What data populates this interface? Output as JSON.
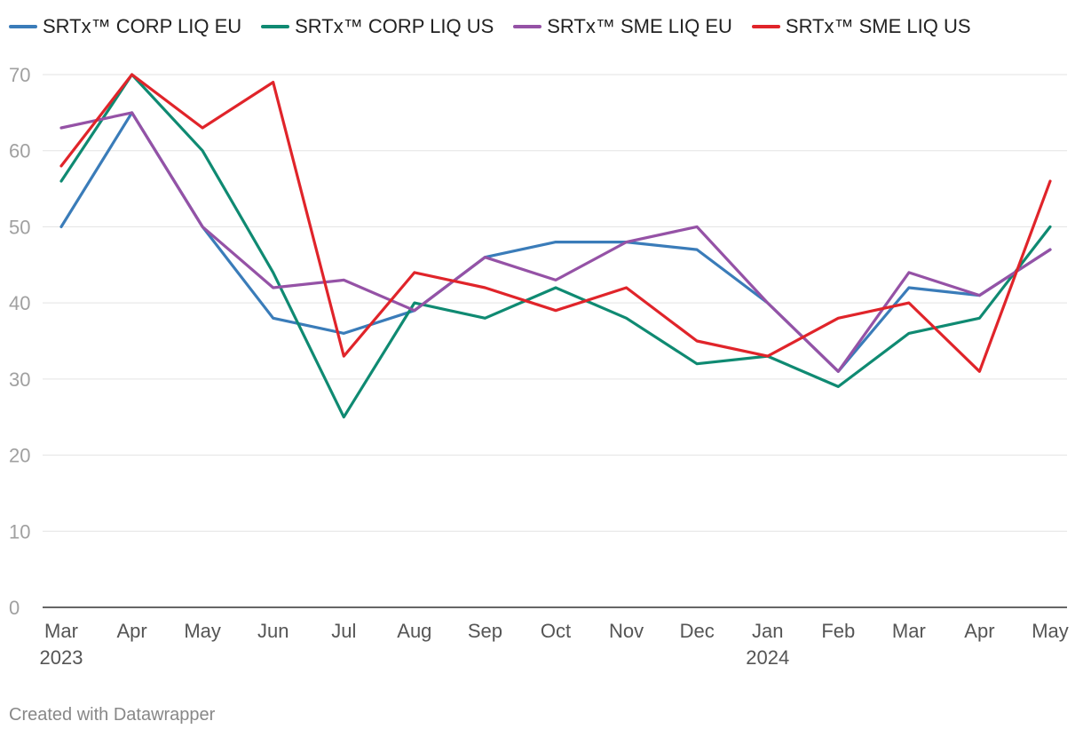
{
  "footer": {
    "credit": "Created with Datawrapper"
  },
  "chart_data": {
    "type": "line",
    "title": "",
    "xlabel": "",
    "ylabel": "",
    "ylim": [
      0,
      70
    ],
    "y_ticks": [
      0,
      10,
      20,
      30,
      40,
      50,
      60,
      70
    ],
    "grid": true,
    "legend_position": "top-left",
    "categories": [
      "Mar",
      "Apr",
      "May",
      "Jun",
      "Jul",
      "Aug",
      "Sep",
      "Oct",
      "Nov",
      "Dec",
      "Jan",
      "Feb",
      "Mar",
      "Apr",
      "May"
    ],
    "year_labels": [
      {
        "index": 0,
        "label": "2023"
      },
      {
        "index": 10,
        "label": "2024"
      }
    ],
    "series": [
      {
        "name": "SRTx™ CORP LIQ EU",
        "color": "#3a7cb9",
        "values": [
          50,
          65,
          50,
          38,
          36,
          39,
          46,
          48,
          48,
          47,
          40,
          31,
          42,
          41,
          47
        ]
      },
      {
        "name": "SRTx™ CORP LIQ US",
        "color": "#0f8a72",
        "values": [
          56,
          70,
          60,
          44,
          25,
          40,
          38,
          42,
          38,
          32,
          33,
          29,
          36,
          38,
          50
        ]
      },
      {
        "name": "SRTx™ SME LIQ EU",
        "color": "#9552a6",
        "values": [
          63,
          65,
          50,
          42,
          43,
          39,
          46,
          43,
          48,
          50,
          40,
          31,
          44,
          41,
          47
        ]
      },
      {
        "name": "SRTx™ SME LIQ US",
        "color": "#e0242a",
        "values": [
          58,
          70,
          63,
          69,
          33,
          44,
          42,
          39,
          42,
          35,
          33,
          38,
          40,
          31,
          56
        ]
      }
    ]
  }
}
